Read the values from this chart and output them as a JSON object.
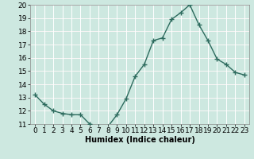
{
  "x": [
    0,
    1,
    2,
    3,
    4,
    5,
    6,
    7,
    8,
    9,
    10,
    11,
    12,
    13,
    14,
    15,
    16,
    17,
    18,
    19,
    20,
    21,
    22,
    23
  ],
  "y": [
    13.2,
    12.5,
    12.0,
    11.8,
    11.7,
    11.7,
    11.0,
    10.85,
    10.8,
    11.7,
    12.9,
    14.6,
    15.5,
    17.3,
    17.5,
    18.9,
    19.4,
    20.0,
    18.5,
    17.3,
    15.9,
    15.5,
    14.9,
    14.7
  ],
  "line_color": "#2d6b5e",
  "marker": "+",
  "marker_size": 4,
  "marker_edge_width": 1.0,
  "background_color": "#cde8e0",
  "grid_color": "#ffffff",
  "grid_pink": "#e0c8c8",
  "xlabel": "Humidex (Indice chaleur)",
  "xlim": [
    -0.5,
    23.5
  ],
  "ylim": [
    11,
    20
  ],
  "yticks": [
    11,
    12,
    13,
    14,
    15,
    16,
    17,
    18,
    19,
    20
  ],
  "xticks": [
    0,
    1,
    2,
    3,
    4,
    5,
    6,
    7,
    8,
    9,
    10,
    11,
    12,
    13,
    14,
    15,
    16,
    17,
    18,
    19,
    20,
    21,
    22,
    23
  ],
  "xlabel_fontsize": 7,
  "tick_fontsize": 6.5,
  "line_width": 1.0
}
